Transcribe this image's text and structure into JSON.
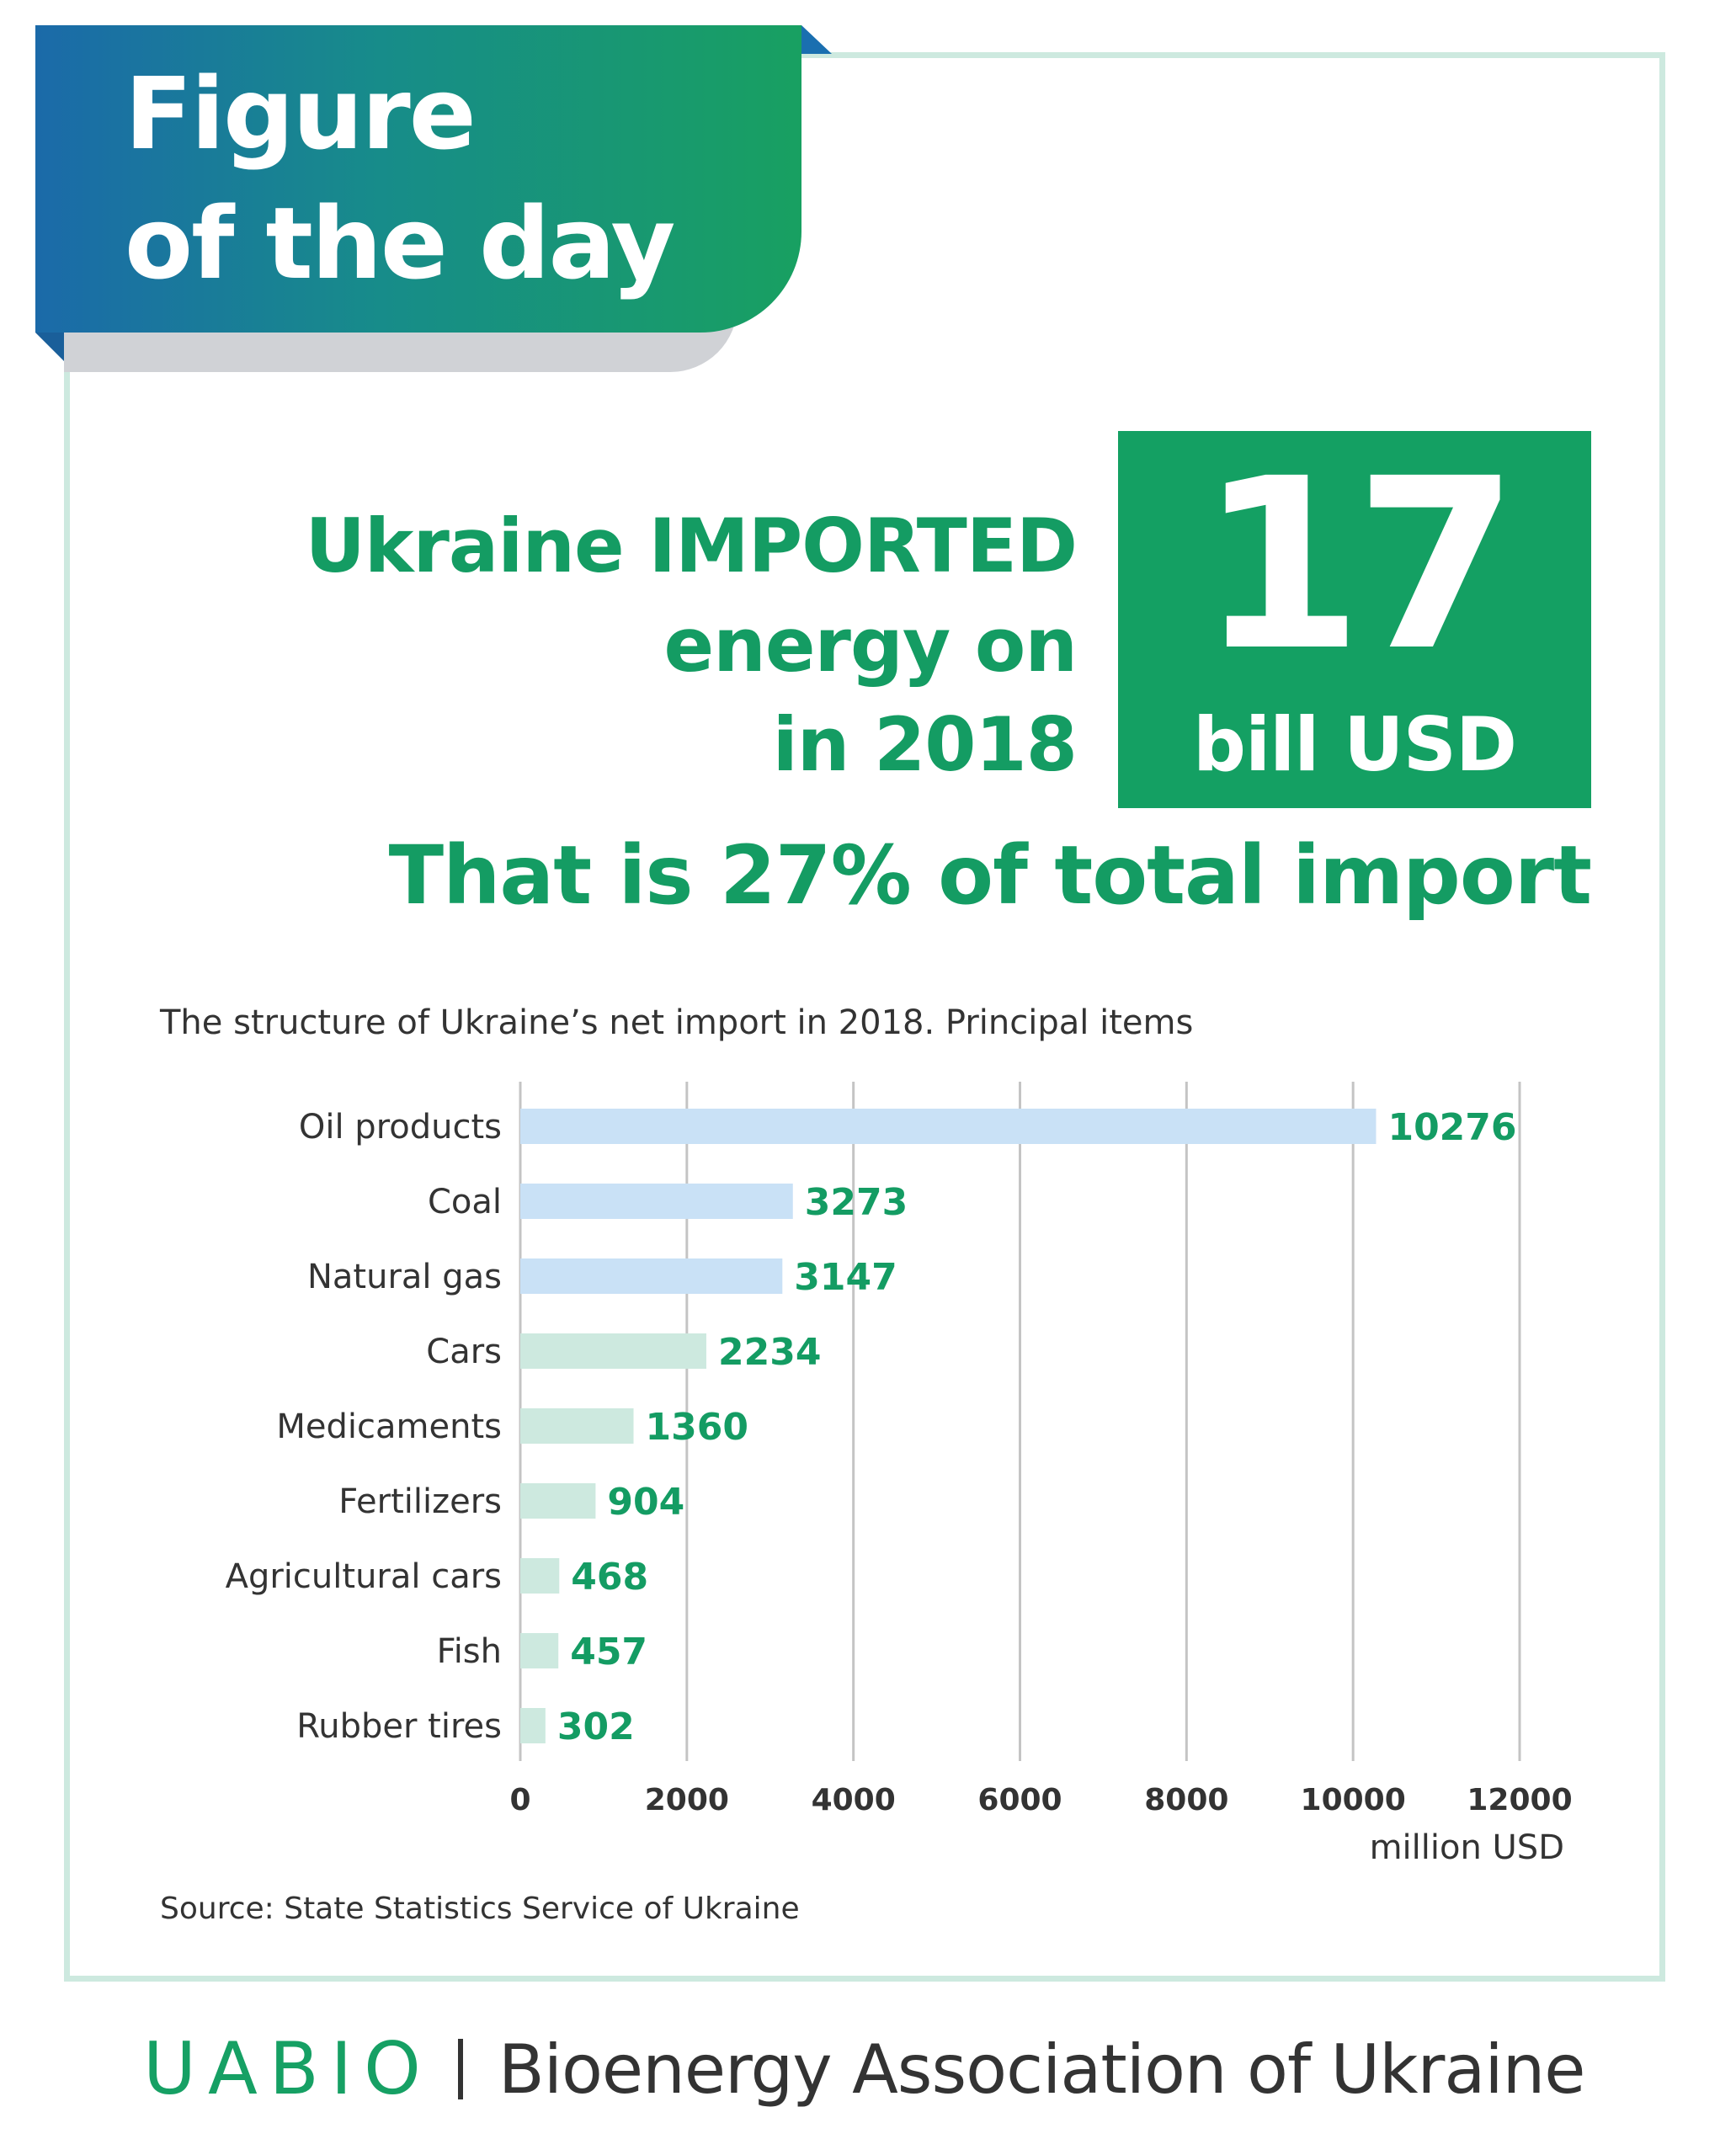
{
  "badge": {
    "line1": "Figure",
    "line2": "of the day"
  },
  "headline": {
    "line1_plain": "Ukraine ",
    "line1_bold": "IMPORTED",
    "line2": "energy on",
    "line3": "in 2018"
  },
  "stat": {
    "value": "17",
    "unit": "bill USD"
  },
  "subheadline": "That is 27% of total import",
  "chart_data": {
    "type": "bar",
    "orientation": "horizontal",
    "title": "The structure of Ukraine’s net import in 2018. Principal items",
    "categories": [
      "Oil products",
      "Coal",
      "Natural gas",
      "Cars",
      "Medicaments",
      "Fertilizers",
      "Agricultural cars",
      "Fish",
      "Rubber tires"
    ],
    "values": [
      10276,
      3273,
      3147,
      2234,
      1360,
      904,
      468,
      457,
      302
    ],
    "value_labels": [
      "10276",
      "3273",
      "3147",
      "2234",
      "1360",
      "904",
      "468",
      "457",
      "302"
    ],
    "bar_colors": [
      "#c9e1f6",
      "#c9e1f6",
      "#c9e1f6",
      "#cde9df",
      "#cde9df",
      "#cde9df",
      "#cde9df",
      "#cde9df",
      "#cde9df"
    ],
    "label_color": "#149c63",
    "xlim": [
      0,
      12000
    ],
    "xticks": [
      "0",
      "2000",
      "4000",
      "6000",
      "8000",
      "10000",
      "12000"
    ],
    "xlabel": "million USD",
    "grid": "vertical"
  },
  "source": "Source: State Statistics Service of Ukraine",
  "footer": {
    "logo": "UABIO",
    "org": "Bioenergy Association of Ukraine"
  },
  "colors": {
    "accent": "#149c63",
    "frame": "#cde9df",
    "badge_start": "#1b6aa9",
    "badge_end": "#18a061"
  }
}
